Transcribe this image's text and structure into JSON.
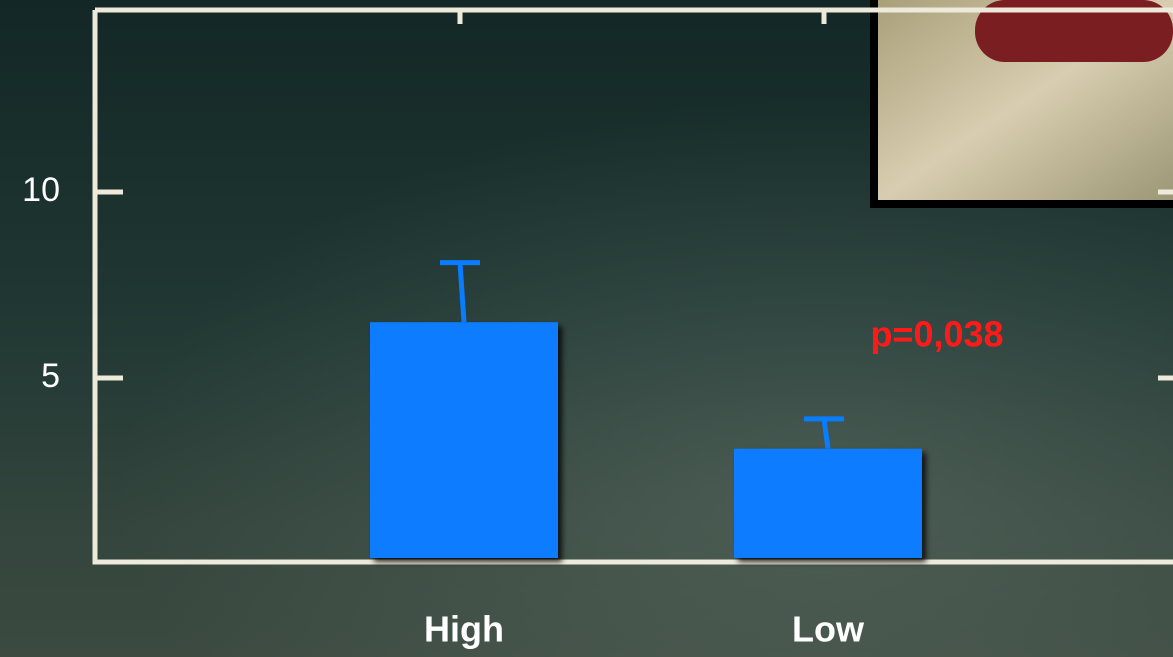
{
  "chart_data": {
    "type": "bar",
    "categories": [
      "High",
      "Low"
    ],
    "values": [
      6.5,
      3.1
    ],
    "errors": [
      1.6,
      0.8
    ],
    "color": "#0a7cff",
    "ylim": [
      0,
      15
    ],
    "yticks": [
      5,
      10
    ],
    "annotation": "p=0,038",
    "annotation_color": "#ff1a1a"
  }
}
